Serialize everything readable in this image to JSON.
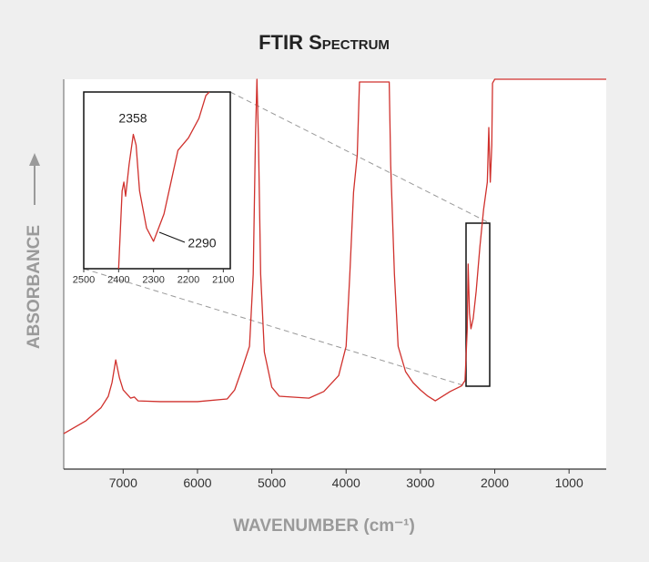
{
  "chart_data": [
    {
      "type": "line",
      "title": "FTIR Spectrum",
      "xlabel": "WAVENUMBER (cm⁻¹)",
      "ylabel": "ABSORBANCE",
      "xlim": [
        7800,
        500
      ],
      "xticks": [
        7000,
        6000,
        5000,
        4000,
        3000,
        2000,
        1000
      ],
      "ylim": [
        0,
        100
      ],
      "x": [
        7800,
        7500,
        7300,
        7200,
        7150,
        7100,
        7050,
        7000,
        6900,
        6850,
        6800,
        6500,
        6000,
        5600,
        5500,
        5400,
        5300,
        5250,
        5220,
        5200,
        5180,
        5150,
        5100,
        5000,
        4900,
        4500,
        4300,
        4100,
        4000,
        3950,
        3900,
        3850,
        3820,
        3800,
        3420,
        3400,
        3350,
        3300,
        3200,
        3100,
        3000,
        2900,
        2800,
        2700,
        2600,
        2450,
        2400,
        2370,
        2358,
        2340,
        2320,
        2290,
        2250,
        2200,
        2150,
        2100,
        2080,
        2060,
        2040,
        2030,
        2000,
        500
      ],
      "series": [
        {
          "color": "#d0312d",
          "values": [
            9.1,
            12.4,
            15.7,
            18.7,
            22.2,
            28,
            23.4,
            20.3,
            18.2,
            18.5,
            17.5,
            17.3,
            17.3,
            18,
            20.3,
            25.7,
            31.5,
            50,
            85,
            100,
            85,
            50,
            30,
            21,
            18.7,
            18.2,
            19.9,
            24,
            31.5,
            50,
            71,
            80.6,
            99.3,
            99.3,
            99.3,
            78,
            50,
            31.5,
            25,
            22.2,
            20.3,
            18.7,
            17.5,
            18.7,
            19.9,
            21.3,
            22.7,
            36,
            52.6,
            40,
            36,
            38.6,
            45.6,
            57,
            66.6,
            73.6,
            87.6,
            73.6,
            83,
            99,
            100,
            100
          ]
        }
      ]
    },
    {
      "type": "line",
      "xlim": [
        2500,
        2080
      ],
      "xticks": [
        2500,
        2400,
        2300,
        2200,
        2100
      ],
      "ylim": [
        0,
        100
      ],
      "x": [
        2400,
        2390,
        2385,
        2380,
        2370,
        2358,
        2350,
        2340,
        2320,
        2300,
        2290,
        2270,
        2250,
        2230,
        2200,
        2170,
        2150,
        2140
      ],
      "series": [
        {
          "color": "#d0312d",
          "values": [
            0,
            44,
            49,
            41,
            59,
            76,
            70,
            44,
            23,
            15.5,
            20.6,
            31,
            49,
            67,
            74,
            85,
            98,
            100
          ]
        }
      ],
      "annotations": [
        "2358",
        "2290"
      ]
    }
  ]
}
